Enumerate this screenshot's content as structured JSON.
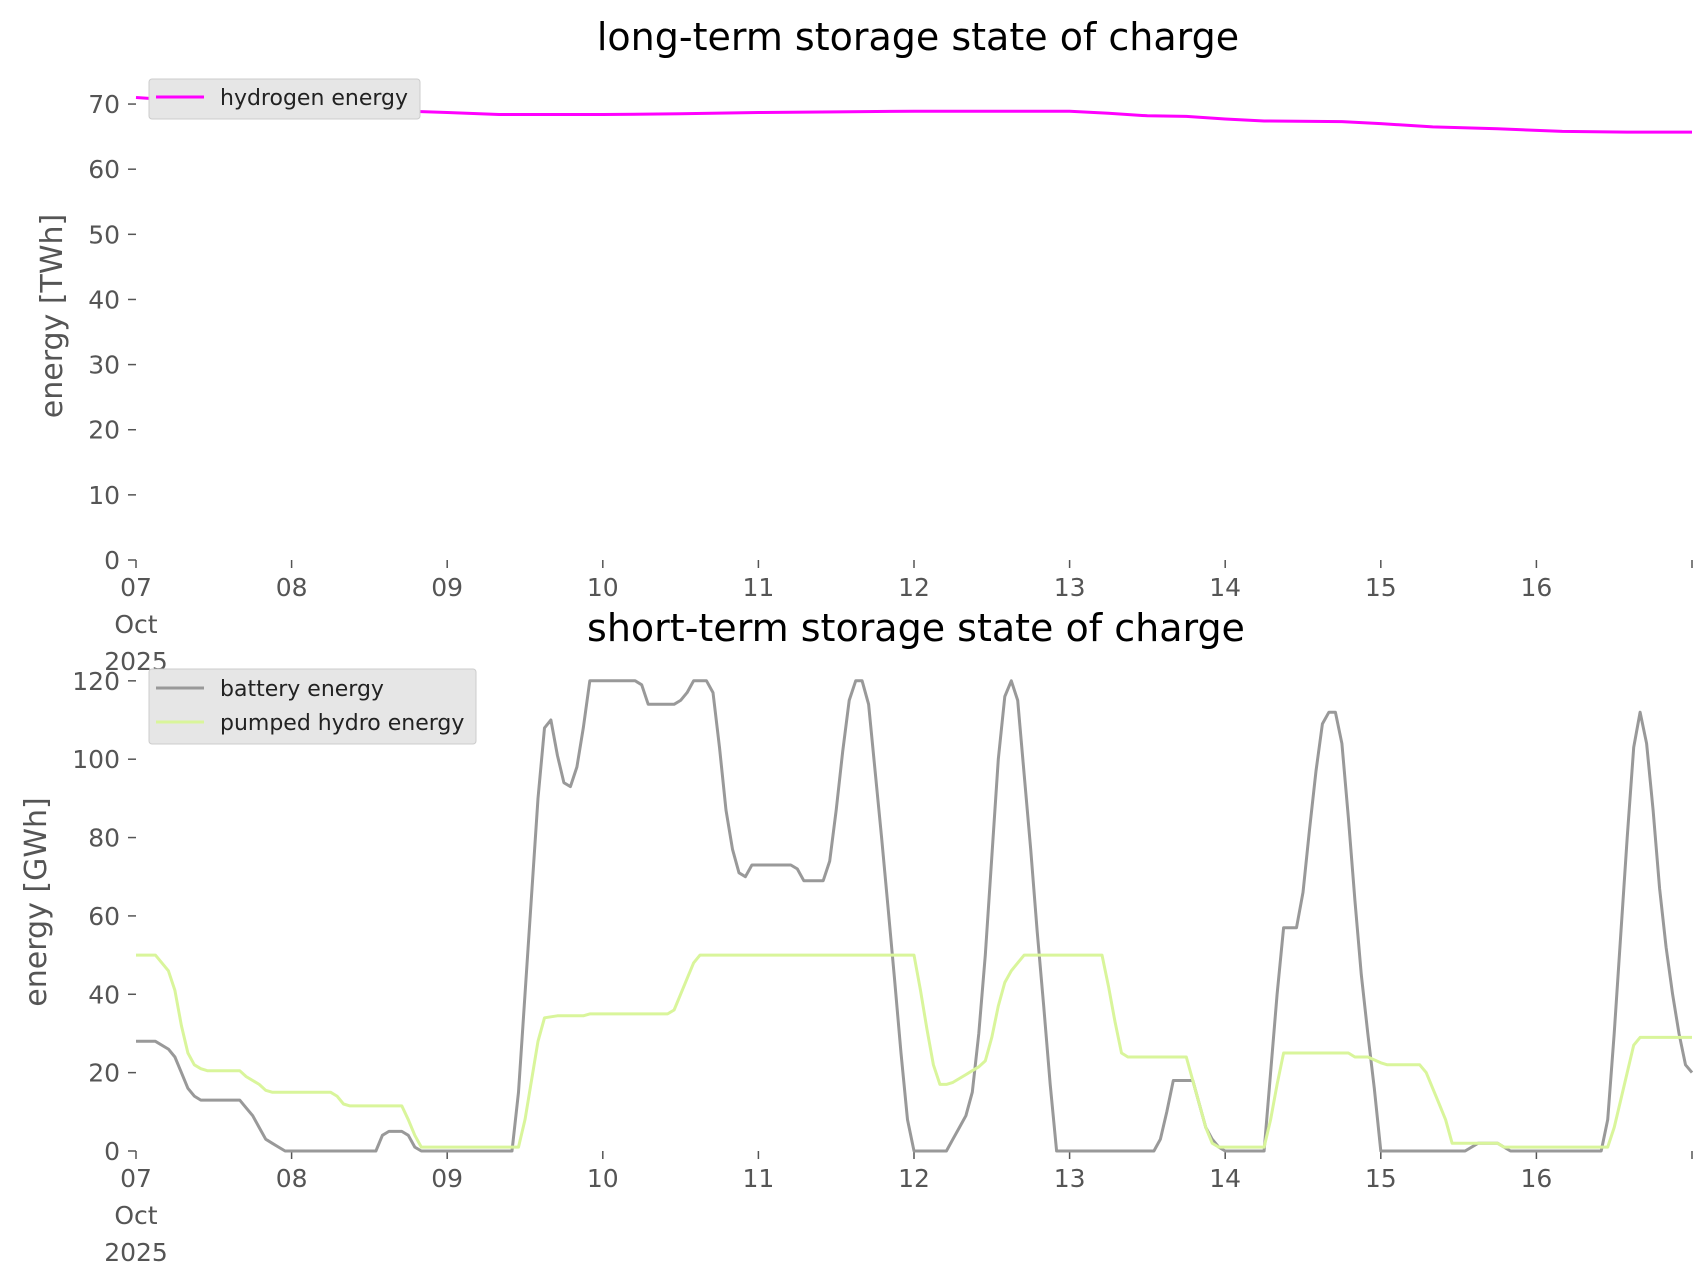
{
  "colors": {
    "background": "#ffffff",
    "tick_text": "#555555",
    "title_text": "#000000",
    "legend_bg": "#e6e6e6",
    "legend_border": "#cccccc"
  },
  "chart_data": [
    {
      "type": "line",
      "title": "long-term storage state of charge",
      "xlabel": "",
      "ylabel": "energy [TWh]",
      "xlim": [
        0,
        240
      ],
      "ylim": [
        0,
        74
      ],
      "grid": false,
      "legend": "top-left",
      "x_ticks": [
        {
          "x": 0,
          "lines": [
            "07",
            "Oct",
            "2025"
          ]
        },
        {
          "x": 24,
          "lines": [
            "08"
          ]
        },
        {
          "x": 48,
          "lines": [
            "09"
          ]
        },
        {
          "x": 72,
          "lines": [
            "10"
          ]
        },
        {
          "x": 96,
          "lines": [
            "11"
          ]
        },
        {
          "x": 120,
          "lines": [
            "12"
          ]
        },
        {
          "x": 144,
          "lines": [
            "13"
          ]
        },
        {
          "x": 168,
          "lines": [
            "14"
          ]
        },
        {
          "x": 192,
          "lines": [
            "15"
          ]
        },
        {
          "x": 216,
          "lines": [
            "16"
          ]
        }
      ],
      "y_ticks": [
        0,
        10,
        20,
        30,
        40,
        50,
        60,
        70
      ],
      "series": [
        {
          "name": "hydrogen energy",
          "color": "#ff00ff",
          "points": [
            [
              0,
              71
            ],
            [
              12,
              70.2
            ],
            [
              24,
              69.5
            ],
            [
              36,
              69.1
            ],
            [
              48,
              68.7
            ],
            [
              56,
              68.4
            ],
            [
              72,
              68.4
            ],
            [
              84,
              68.5
            ],
            [
              96,
              68.7
            ],
            [
              108,
              68.8
            ],
            [
              120,
              68.9
            ],
            [
              144,
              68.9
            ],
            [
              150,
              68.6
            ],
            [
              156,
              68.2
            ],
            [
              162,
              68.1
            ],
            [
              168,
              67.7
            ],
            [
              174,
              67.4
            ],
            [
              186,
              67.3
            ],
            [
              192,
              67.0
            ],
            [
              200,
              66.5
            ],
            [
              210,
              66.2
            ],
            [
              220,
              65.8
            ],
            [
              230,
              65.7
            ],
            [
              240,
              65.7
            ]
          ]
        }
      ]
    },
    {
      "type": "line",
      "title": "short-term storage state of charge",
      "xlabel": "",
      "ylabel": "energy [GWh]",
      "xlim": [
        0,
        240
      ],
      "ylim": [
        0,
        122
      ],
      "grid": false,
      "legend": "top-left",
      "x_ticks": [
        {
          "x": 0,
          "lines": [
            "07",
            "Oct",
            "2025"
          ]
        },
        {
          "x": 24,
          "lines": [
            "08"
          ]
        },
        {
          "x": 48,
          "lines": [
            "09"
          ]
        },
        {
          "x": 72,
          "lines": [
            "10"
          ]
        },
        {
          "x": 96,
          "lines": [
            "11"
          ]
        },
        {
          "x": 120,
          "lines": [
            "12"
          ]
        },
        {
          "x": 144,
          "lines": [
            "13"
          ]
        },
        {
          "x": 168,
          "lines": [
            "14"
          ]
        },
        {
          "x": 192,
          "lines": [
            "15"
          ]
        },
        {
          "x": 216,
          "lines": [
            "16"
          ]
        }
      ],
      "y_ticks": [
        0,
        20,
        40,
        60,
        80,
        100,
        120
      ],
      "series": [
        {
          "name": "battery energy",
          "color": "#999999",
          "points": [
            [
              0,
              28
            ],
            [
              3,
              28
            ],
            [
              5,
              26
            ],
            [
              6,
              24
            ],
            [
              7,
              20
            ],
            [
              8,
              16
            ],
            [
              9,
              14
            ],
            [
              10,
              13
            ],
            [
              14,
              13
            ],
            [
              16,
              13
            ],
            [
              17,
              11
            ],
            [
              18,
              9
            ],
            [
              19,
              6
            ],
            [
              20,
              3
            ],
            [
              21,
              2
            ],
            [
              22,
              1
            ],
            [
              23,
              0
            ],
            [
              37,
              0
            ],
            [
              38,
              4
            ],
            [
              39,
              5
            ],
            [
              41,
              5
            ],
            [
              42,
              4
            ],
            [
              43,
              1
            ],
            [
              44,
              0
            ],
            [
              58,
              0
            ],
            [
              59,
              15
            ],
            [
              60,
              40
            ],
            [
              61,
              65
            ],
            [
              62,
              90
            ],
            [
              63,
              108
            ],
            [
              64,
              110
            ],
            [
              65,
              101
            ],
            [
              66,
              94
            ],
            [
              67,
              93
            ],
            [
              68,
              98
            ],
            [
              69,
              108
            ],
            [
              70,
              120
            ],
            [
              77,
              120
            ],
            [
              78,
              119
            ],
            [
              79,
              114
            ],
            [
              83,
              114
            ],
            [
              84,
              115
            ],
            [
              85,
              117
            ],
            [
              86,
              120
            ],
            [
              88,
              120
            ],
            [
              89,
              117
            ],
            [
              90,
              103
            ],
            [
              91,
              87
            ],
            [
              92,
              77
            ],
            [
              93,
              71
            ],
            [
              94,
              70
            ],
            [
              95,
              73
            ],
            [
              101,
              73
            ],
            [
              102,
              72
            ],
            [
              103,
              69
            ],
            [
              106,
              69
            ],
            [
              107,
              74
            ],
            [
              108,
              87
            ],
            [
              109,
              102
            ],
            [
              110,
              115
            ],
            [
              111,
              120
            ],
            [
              112,
              120
            ],
            [
              113,
              114
            ],
            [
              114,
              97
            ],
            [
              115,
              80
            ],
            [
              116,
              62
            ],
            [
              117,
              44
            ],
            [
              118,
              25
            ],
            [
              119,
              8
            ],
            [
              120,
              0
            ],
            [
              125,
              0
            ],
            [
              126,
              3
            ],
            [
              127,
              6
            ],
            [
              128,
              9
            ],
            [
              129,
              15
            ],
            [
              130,
              30
            ],
            [
              131,
              50
            ],
            [
              132,
              75
            ],
            [
              133,
              100
            ],
            [
              134,
              116
            ],
            [
              135,
              120
            ],
            [
              136,
              115
            ],
            [
              137,
              96
            ],
            [
              138,
              77
            ],
            [
              139,
              56
            ],
            [
              140,
              37
            ],
            [
              141,
              17
            ],
            [
              142,
              0
            ],
            [
              157,
              0
            ],
            [
              158,
              3
            ],
            [
              159,
              10
            ],
            [
              160,
              18
            ],
            [
              163,
              18
            ],
            [
              164,
              12
            ],
            [
              165,
              6
            ],
            [
              166,
              3
            ],
            [
              167,
              1
            ],
            [
              168,
              0
            ],
            [
              174,
              0
            ],
            [
              175,
              20
            ],
            [
              176,
              40
            ],
            [
              177,
              57
            ],
            [
              179,
              57
            ],
            [
              180,
              66
            ],
            [
              181,
              82
            ],
            [
              182,
              97
            ],
            [
              183,
              109
            ],
            [
              184,
              112
            ],
            [
              185,
              112
            ],
            [
              186,
              104
            ],
            [
              187,
              85
            ],
            [
              188,
              64
            ],
            [
              189,
              45
            ],
            [
              190,
              30
            ],
            [
              191,
              16
            ],
            [
              192,
              0
            ],
            [
              205,
              0
            ],
            [
              206,
              1
            ],
            [
              207,
              2
            ],
            [
              210,
              2
            ],
            [
              211,
              1
            ],
            [
              212,
              0
            ],
            [
              226,
              0
            ],
            [
              227,
              8
            ],
            [
              228,
              30
            ],
            [
              229,
              55
            ],
            [
              230,
              80
            ],
            [
              231,
              103
            ],
            [
              232,
              112
            ],
            [
              233,
              104
            ],
            [
              234,
              87
            ],
            [
              235,
              67
            ],
            [
              236,
              52
            ],
            [
              237,
              40
            ],
            [
              238,
              30
            ],
            [
              239,
              22
            ],
            [
              240,
              20
            ]
          ]
        },
        {
          "name": "pumped hydro energy",
          "color": "#d9f59b",
          "points": [
            [
              0,
              50
            ],
            [
              3,
              50
            ],
            [
              4,
              48
            ],
            [
              5,
              46
            ],
            [
              6,
              41
            ],
            [
              7,
              32
            ],
            [
              8,
              25
            ],
            [
              9,
              22
            ],
            [
              10,
              21
            ],
            [
              11,
              20.5
            ],
            [
              16,
              20.5
            ],
            [
              17,
              19
            ],
            [
              19,
              17
            ],
            [
              20,
              15.5
            ],
            [
              21,
              15
            ],
            [
              30,
              15
            ],
            [
              31,
              14
            ],
            [
              32,
              12
            ],
            [
              33,
              11.5
            ],
            [
              41,
              11.5
            ],
            [
              42,
              8
            ],
            [
              43,
              4
            ],
            [
              44,
              1
            ],
            [
              59,
              1
            ],
            [
              60,
              8
            ],
            [
              61,
              18
            ],
            [
              62,
              28
            ],
            [
              63,
              34
            ],
            [
              65,
              34.5
            ],
            [
              69,
              34.5
            ],
            [
              70,
              35
            ],
            [
              82,
              35
            ],
            [
              83,
              36
            ],
            [
              84,
              40
            ],
            [
              85,
              44
            ],
            [
              86,
              48
            ],
            [
              87,
              50
            ],
            [
              120,
              50
            ],
            [
              121,
              41
            ],
            [
              122,
              31
            ],
            [
              123,
              22
            ],
            [
              124,
              17
            ],
            [
              125,
              17
            ],
            [
              126,
              17.5
            ],
            [
              127,
              18.5
            ],
            [
              128,
              19.5
            ],
            [
              129,
              20.5
            ],
            [
              130,
              21.5
            ],
            [
              131,
              23
            ],
            [
              132,
              29
            ],
            [
              133,
              37
            ],
            [
              134,
              43
            ],
            [
              135,
              46
            ],
            [
              136,
              48
            ],
            [
              137,
              50
            ],
            [
              149,
              50
            ],
            [
              150,
              42
            ],
            [
              151,
              33
            ],
            [
              152,
              25
            ],
            [
              153,
              24
            ],
            [
              162,
              24
            ],
            [
              163,
              18
            ],
            [
              164,
              12
            ],
            [
              165,
              6
            ],
            [
              166,
              2
            ],
            [
              167,
              1
            ],
            [
              174,
              1
            ],
            [
              175,
              8
            ],
            [
              176,
              17
            ],
            [
              177,
              25
            ],
            [
              186,
              25
            ],
            [
              187,
              25
            ],
            [
              188,
              24
            ],
            [
              190,
              24
            ],
            [
              192,
              22.5
            ],
            [
              193,
              22
            ],
            [
              198,
              22
            ],
            [
              199,
              20
            ],
            [
              200,
              16
            ],
            [
              201,
              12
            ],
            [
              202,
              8
            ],
            [
              203,
              2
            ],
            [
              208,
              2
            ],
            [
              209,
              2
            ],
            [
              210,
              2
            ],
            [
              211,
              1
            ],
            [
              227,
              1
            ],
            [
              228,
              6
            ],
            [
              229,
              13
            ],
            [
              230,
              20
            ],
            [
              231,
              27
            ],
            [
              232,
              29
            ],
            [
              240,
              29
            ]
          ]
        }
      ]
    }
  ]
}
